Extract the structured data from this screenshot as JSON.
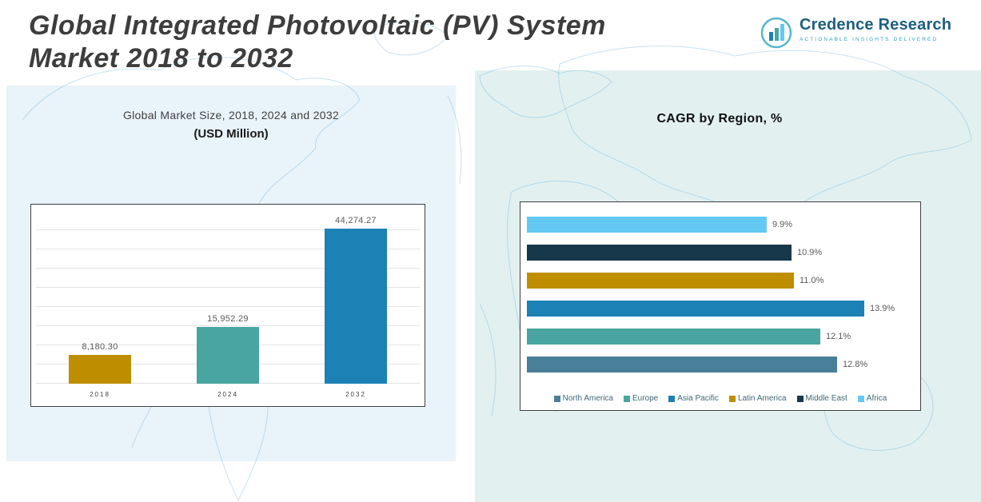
{
  "header": {
    "title_line1": "Global Integrated Photovoltaic (PV) System",
    "title_line2": "Market 2018 to 2032"
  },
  "logo": {
    "brand": "Credence Research",
    "tagline": "Actionable Insights Delivered",
    "brand_color": "#1d5f80",
    "tagline_color": "#2fa3c0"
  },
  "chart_data": [
    {
      "type": "bar",
      "orientation": "vertical",
      "title": "Global Market Size, 2018, 2024 and 2032",
      "subtitle": "(USD Million)",
      "categories": [
        "2018",
        "2024",
        "2032"
      ],
      "values": [
        8180.3,
        15952.29,
        44274.27
      ],
      "labels": [
        "8,180.30",
        "15,952.29",
        "44,274.27"
      ],
      "colors": [
        "#BE8E00",
        "#48A5A1",
        "#1C81B5"
      ],
      "ylim": [
        0,
        47000
      ],
      "grid": true
    },
    {
      "type": "bar",
      "orientation": "horizontal",
      "title": "CAGR by Region, %",
      "xlim": [
        0,
        15
      ],
      "rows_top_to_bottom": [
        {
          "region": "Africa",
          "value": 9.9,
          "label": "9.9%",
          "color": "#63C9F3"
        },
        {
          "region": "Middle East",
          "value": 10.9,
          "label": "10.9%",
          "color": "#17384B"
        },
        {
          "region": "Latin America",
          "value": 11.0,
          "label": "11.0%",
          "color": "#BE8E00"
        },
        {
          "region": "Asia Pacific",
          "value": 13.9,
          "label": "13.9%",
          "color": "#1C81B5"
        },
        {
          "region": "Europe",
          "value": 12.1,
          "label": "12.1%",
          "color": "#48A5A1"
        },
        {
          "region": "North America",
          "value": 12.8,
          "label": "12.8%",
          "color": "#4A7F99"
        }
      ],
      "legend_position": "bottom",
      "legend": [
        {
          "label": "North America",
          "color": "#4A7F99"
        },
        {
          "label": "Europe",
          "color": "#48A5A1"
        },
        {
          "label": "Asia Pacific",
          "color": "#1C81B5"
        },
        {
          "label": "Latin America",
          "color": "#BE8E00"
        },
        {
          "label": "Middle East",
          "color": "#17384B"
        },
        {
          "label": "Africa",
          "color": "#63C9F3"
        }
      ]
    }
  ]
}
